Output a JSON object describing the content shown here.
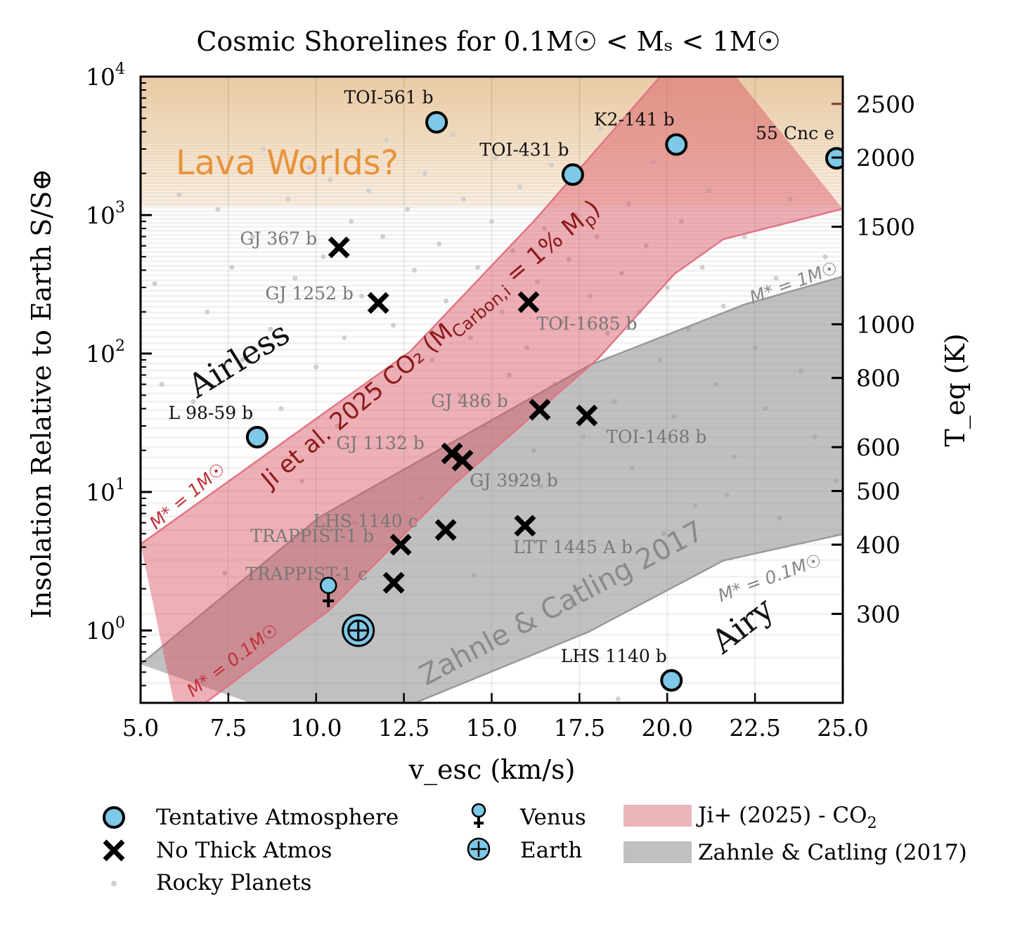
{
  "chart_data": {
    "type": "scatter",
    "title": "Cosmic Shorelines for 0.1M☉ < Mₛ < 1M☉",
    "xlabel": "v_esc (km/s)",
    "ylabel": "Insolation Relative to Earth S/S⊕",
    "y2label": "T_eq (K)",
    "xlim": [
      5,
      25
    ],
    "ylim": [
      0.3,
      10000
    ],
    "yscale": "log",
    "x_ticks": [
      "5.0",
      "7.5",
      "10.0",
      "12.5",
      "15.0",
      "17.5",
      "20.0",
      "22.5",
      "25.0"
    ],
    "y_ticks": [
      {
        "base": "10",
        "exp": "0",
        "value": 1
      },
      {
        "base": "10",
        "exp": "1",
        "value": 10
      },
      {
        "base": "10",
        "exp": "2",
        "value": 100
      },
      {
        "base": "10",
        "exp": "3",
        "value": 1000
      },
      {
        "base": "10",
        "exp": "4",
        "value": 10000
      }
    ],
    "y2_ticks": [
      300,
      400,
      500,
      600,
      800,
      1000,
      1500,
      2000,
      2500
    ],
    "grid": true,
    "colors": {
      "tentative": "#7ec8e8",
      "ji_band": "#d9505f",
      "zc_band": "#969696",
      "lava": "#e8923a",
      "ji_text": "#8b1a1a",
      "ji_edge_label": "#c0303a",
      "gray_label": "#888888"
    },
    "region_labels": {
      "lava": "Lava Worlds?",
      "airless": "Airless",
      "airy": "Airy",
      "ji": "Ji et al. 2025 CO₂ (M",
      "ji_sub": "Carbon,i",
      "ji_tail": " = 1% M",
      "ji_p": "p",
      "ji_close": ")",
      "zc": "Zahnle & Catling 2017",
      "ji_upper": "M* = 1M☉",
      "ji_lower": "M* = 0.1M☉",
      "zc_upper": "M* = 1M☉",
      "zc_lower": "M* = 0.1M☉"
    },
    "lava_threshold_S": 1150,
    "tentative_atmosphere": [
      {
        "name": "TOI-561 b",
        "v": 13.43,
        "S": 4680
      },
      {
        "name": "K2-141 b",
        "v": 20.26,
        "S": 3230
      },
      {
        "name": "TOI-431 b",
        "v": 17.31,
        "S": 1960
      },
      {
        "name": "55 Cnc e",
        "v": 24.82,
        "S": 2570
      },
      {
        "name": "L 98-59 b",
        "v": 8.32,
        "S": 24.9
      },
      {
        "name": "LHS 1140 b",
        "v": 20.12,
        "S": 0.436
      }
    ],
    "no_thick_atmos": [
      {
        "name": "GJ 367 b",
        "v": 10.65,
        "S": 584
      },
      {
        "name": "GJ 1252 b",
        "v": 11.77,
        "S": 232
      },
      {
        "name": "TOI-1685 b",
        "v": 16.05,
        "S": 235
      },
      {
        "name": "GJ 486 b",
        "v": 16.37,
        "S": 39.3
      },
      {
        "name": "TOI-1468 b",
        "v": 17.71,
        "S": 35.7
      },
      {
        "name": "GJ 1132 b",
        "v": 13.87,
        "S": 19.0
      },
      {
        "name": "GJ 3929 b",
        "v": 14.17,
        "S": 16.9
      },
      {
        "name": "LHS 1140 c",
        "v": 13.69,
        "S": 5.32
      },
      {
        "name": "LTT 1445 A b",
        "v": 15.95,
        "S": 5.71
      },
      {
        "name": "TRAPPIST-1 b",
        "v": 12.41,
        "S": 4.16
      },
      {
        "name": "TRAPPIST-1 c",
        "v": 12.21,
        "S": 2.21
      }
    ],
    "venus": {
      "v": 10.35,
      "S": 1.95
    },
    "earth": {
      "v": 11.2,
      "S": 1.0
    },
    "ji_band": {
      "upper": [
        [
          5,
          4.2
        ],
        [
          12.67,
          103
        ],
        [
          16.23,
          920
        ],
        [
          19.8,
          10000
        ],
        [
          21,
          20000
        ]
      ],
      "lower": [
        [
          6.2,
          0.15
        ],
        [
          6.66,
          0.277
        ],
        [
          10.37,
          1.4
        ],
        [
          13.93,
          11.4
        ],
        [
          18.03,
          92
        ],
        [
          20.2,
          375
        ],
        [
          21.6,
          670
        ],
        [
          25,
          1110
        ]
      ]
    },
    "zc_band": {
      "upper": [
        [
          5,
          0.57
        ],
        [
          10.1,
          6.6
        ],
        [
          17.77,
          82
        ],
        [
          22.2,
          226
        ],
        [
          25,
          360
        ]
      ],
      "lower": [
        [
          11.5,
          0.15
        ],
        [
          12.53,
          0.28
        ],
        [
          17.77,
          0.98
        ],
        [
          21.6,
          3.2
        ],
        [
          25,
          4.96
        ]
      ]
    },
    "rocky_planets": [
      [
        5.6,
        60
      ],
      [
        5.4,
        320
      ],
      [
        6.1,
        1400
      ],
      [
        6.5,
        45
      ],
      [
        6.9,
        200
      ],
      [
        7.2,
        1100
      ],
      [
        7.4,
        2.6
      ],
      [
        7.6,
        420
      ],
      [
        7.9,
        90
      ],
      [
        8.2,
        700
      ],
      [
        8.5,
        3000
      ],
      [
        8.7,
        150
      ],
      [
        9.0,
        40
      ],
      [
        9.2,
        1300
      ],
      [
        9.4,
        350
      ],
      [
        9.6,
        12
      ],
      [
        9.8,
        2200
      ],
      [
        10.0,
        80
      ],
      [
        10.2,
        500
      ],
      [
        10.4,
        1800
      ],
      [
        10.6,
        30
      ],
      [
        10.8,
        130
      ],
      [
        11.0,
        900
      ],
      [
        11.1,
        6
      ],
      [
        11.3,
        260
      ],
      [
        11.5,
        1500
      ],
      [
        11.7,
        55
      ],
      [
        11.9,
        700
      ],
      [
        12.0,
        3500
      ],
      [
        12.2,
        160
      ],
      [
        12.4,
        25
      ],
      [
        12.6,
        1100
      ],
      [
        12.8,
        400
      ],
      [
        13.0,
        9
      ],
      [
        13.1,
        2000
      ],
      [
        13.3,
        90
      ],
      [
        13.5,
        620
      ],
      [
        13.7,
        240
      ],
      [
        13.9,
        3800
      ],
      [
        14.1,
        50
      ],
      [
        14.2,
        1300
      ],
      [
        14.4,
        130
      ],
      [
        14.6,
        420
      ],
      [
        14.8,
        30
      ],
      [
        15.0,
        900
      ],
      [
        15.1,
        2600
      ],
      [
        15.3,
        200
      ],
      [
        15.5,
        70
      ],
      [
        15.6,
        550
      ],
      [
        15.8,
        1600
      ],
      [
        16.0,
        110
      ],
      [
        16.2,
        20
      ],
      [
        16.3,
        330
      ],
      [
        16.5,
        800
      ],
      [
        16.7,
        2300
      ],
      [
        16.8,
        60
      ],
      [
        17.0,
        170
      ],
      [
        17.2,
        480
      ],
      [
        17.4,
        1000
      ],
      [
        17.6,
        25
      ],
      [
        17.8,
        260
      ],
      [
        18.0,
        700
      ],
      [
        18.1,
        4200
      ],
      [
        18.3,
        140
      ],
      [
        18.5,
        45
      ],
      [
        18.7,
        380
      ],
      [
        18.9,
        1200
      ],
      [
        19.0,
        15
      ],
      [
        19.2,
        200
      ],
      [
        19.4,
        600
      ],
      [
        19.6,
        2400
      ],
      [
        19.8,
        90
      ],
      [
        20.0,
        300
      ],
      [
        20.2,
        35
      ],
      [
        20.4,
        900
      ],
      [
        20.6,
        150
      ],
      [
        20.8,
        8
      ],
      [
        21.0,
        420
      ],
      [
        21.2,
        1500
      ],
      [
        21.4,
        60
      ],
      [
        21.6,
        220
      ],
      [
        21.9,
        18
      ],
      [
        22.2,
        700
      ],
      [
        22.5,
        110
      ],
      [
        22.8,
        40
      ],
      [
        23.1,
        350
      ],
      [
        23.5,
        1300
      ],
      [
        23.8,
        75
      ],
      [
        24.2,
        25
      ],
      [
        24.5,
        500
      ],
      [
        24.8,
        12
      ],
      [
        18.6,
        0.32
      ],
      [
        14.5,
        2.5
      ],
      [
        17.3,
        1.6
      ],
      [
        16.4,
        11
      ],
      [
        19.9,
        5
      ],
      [
        21.7,
        9.5
      ],
      [
        23.2,
        6.5
      ]
    ]
  },
  "legend": {
    "tentative": "Tentative Atmosphere",
    "no_thick": "No Thick Atmos",
    "rocky": "Rocky Planets",
    "venus": "Venus",
    "earth": "Earth",
    "ji": "Ji+ (2025) - CO",
    "ji_sub": "2",
    "zc": "Zahnle & Catling (2017)"
  }
}
